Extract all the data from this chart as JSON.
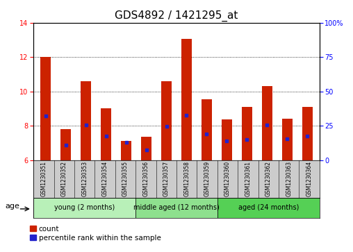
{
  "title": "GDS4892 / 1421295_at",
  "samples": [
    "GSM1230351",
    "GSM1230352",
    "GSM1230353",
    "GSM1230354",
    "GSM1230355",
    "GSM1230356",
    "GSM1230357",
    "GSM1230358",
    "GSM1230359",
    "GSM1230360",
    "GSM1230361",
    "GSM1230362",
    "GSM1230363",
    "GSM1230364"
  ],
  "count_values": [
    12.0,
    7.8,
    10.6,
    9.0,
    7.1,
    7.35,
    10.6,
    13.05,
    9.55,
    8.35,
    9.1,
    10.3,
    8.4,
    9.1
  ],
  "percentile_values": [
    8.55,
    6.85,
    8.05,
    7.4,
    7.05,
    6.6,
    7.95,
    8.6,
    7.5,
    7.1,
    7.2,
    8.05,
    7.25,
    7.4
  ],
  "ylim_left": [
    6,
    14
  ],
  "ylim_right": [
    0,
    100
  ],
  "yticks_left": [
    6,
    8,
    10,
    12,
    14
  ],
  "yticks_right": [
    0,
    25,
    50,
    75,
    100
  ],
  "bar_color": "#cc2200",
  "marker_color": "#2222cc",
  "bar_width": 0.5,
  "groups": [
    {
      "label": "young (2 months)",
      "start": 0,
      "end": 5
    },
    {
      "label": "middle aged (12 months)",
      "start": 5,
      "end": 9
    },
    {
      "label": "aged (24 months)",
      "start": 9,
      "end": 14
    }
  ],
  "group_colors": [
    "#b8f0b8",
    "#8ee08e",
    "#55d055"
  ],
  "age_label": "age",
  "legend_count_label": "count",
  "legend_percentile_label": "percentile rank within the sample",
  "title_fontsize": 11,
  "tick_fontsize": 7,
  "sample_fontsize": 5.5,
  "group_fontsize": 7,
  "legend_fontsize": 7.5,
  "background_color": "#ffffff",
  "tick_area_color": "#cccccc"
}
